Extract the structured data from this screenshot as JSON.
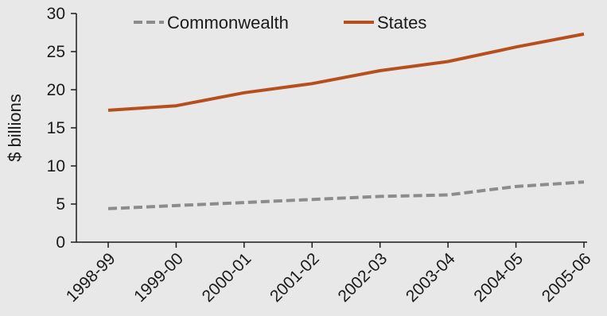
{
  "chart_data": {
    "type": "line",
    "title": "",
    "xlabel": "",
    "ylabel": "$ billions",
    "categories": [
      "1998-99",
      "1999-00",
      "2000-01",
      "2001-02",
      "2002-03",
      "2003-04",
      "2004-05",
      "2005-06"
    ],
    "yticks": [
      0,
      5,
      10,
      15,
      20,
      25,
      30
    ],
    "ylim": [
      0,
      30
    ],
    "grid": false,
    "legend_position": "top",
    "series": [
      {
        "name": "Commonwealth",
        "values": [
          4.4,
          4.8,
          5.2,
          5.6,
          6.0,
          6.2,
          7.3,
          7.9
        ],
        "color": "#8c8c8c",
        "style": "dashed"
      },
      {
        "name": "States",
        "values": [
          17.3,
          17.9,
          19.6,
          20.8,
          22.5,
          23.7,
          25.6,
          27.3
        ],
        "color": "#b5501e",
        "style": "solid"
      }
    ]
  }
}
